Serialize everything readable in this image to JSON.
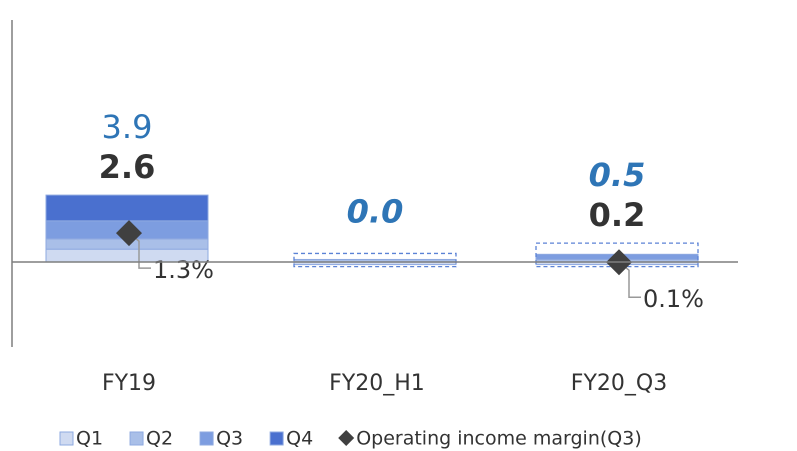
{
  "chart_data": {
    "type": "bar",
    "categories": [
      "FY19",
      "FY20_H1",
      "FY20_Q3"
    ],
    "series": [
      {
        "name": "Q1",
        "color": "#cfdaf1",
        "values": [
          0.5,
          -0.1,
          -0.1
        ]
      },
      {
        "name": "Q2",
        "color": "#a9bfe8",
        "values": [
          0.4,
          0.1,
          0.1
        ]
      },
      {
        "name": "Q3",
        "color": "#7d9de0",
        "values": [
          0.7,
          null,
          0.2
        ]
      },
      {
        "name": "Q4",
        "color": "#4a70cf",
        "values": [
          1.0,
          null,
          null
        ]
      },
      {
        "name": "Operating income margin(Q3)",
        "color": "#404040",
        "type": "marker",
        "axis": "y2",
        "values": [
          1.3,
          null,
          0.1
        ],
        "value_labels": [
          "1.3%",
          null,
          "0.1%"
        ]
      }
    ],
    "totals": [
      2.6,
      null,
      0.2
    ],
    "plan_values": [
      3.9,
      0.0,
      0.5
    ],
    "plan_values_labels": [
      "3.9",
      "0.0",
      "0.5"
    ],
    "plan_outline": [
      false,
      true,
      true
    ],
    "plan_italic": [
      false,
      true,
      true
    ],
    "ylim": [
      -3.3,
      9.4
    ],
    "y2lim": [
      -3.4,
      10.1
    ]
  }
}
